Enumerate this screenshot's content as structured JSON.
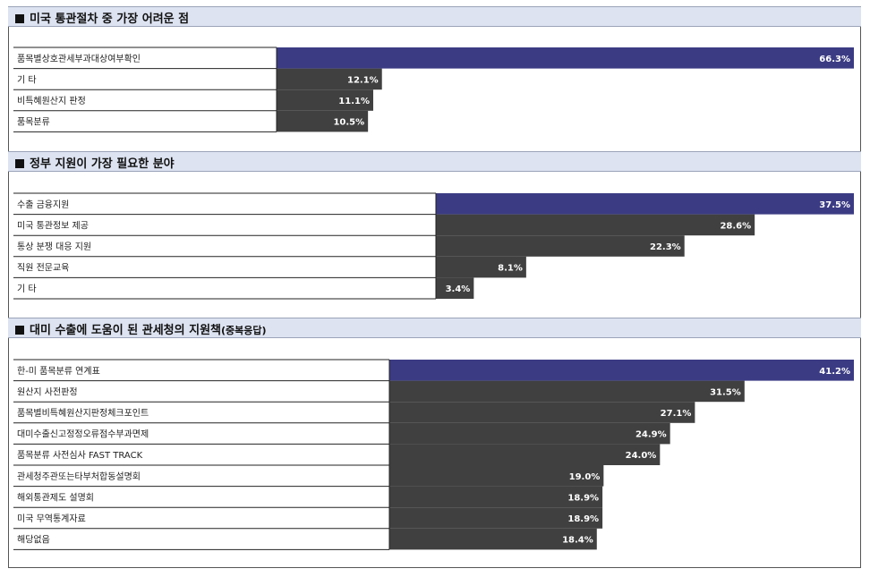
{
  "colors": {
    "highlight": "#3b3b84",
    "bar": "#404040",
    "header_bg": "#dde3f1"
  },
  "chart_data": [
    {
      "type": "bar",
      "orientation": "horizontal",
      "title": "미국 통관절차 중 가장 어려운 점",
      "subtitle": "",
      "categories": [
        "품목별상호관세부과대상여부확인",
        "기 타",
        "비특혜원산지 판정",
        "품목분류"
      ],
      "values": [
        66.3,
        12.1,
        11.1,
        10.5
      ],
      "value_labels": [
        "66.3%",
        "12.1%",
        "11.1%",
        "10.5%"
      ],
      "highlight_index": 0
    },
    {
      "type": "bar",
      "orientation": "horizontal",
      "title": "정부 지원이 가장 필요한 분야",
      "subtitle": "",
      "categories": [
        "수출 금융지원",
        "미국 통관정보 제공",
        "통상 분쟁 대응 지원",
        "직원 전문교육",
        "기 타"
      ],
      "values": [
        37.5,
        28.6,
        22.3,
        8.1,
        3.4
      ],
      "value_labels": [
        "37.5%",
        "28.6%",
        "22.3%",
        "8.1%",
        "3.4%"
      ],
      "highlight_index": 0
    },
    {
      "type": "bar",
      "orientation": "horizontal",
      "title": "대미 수출에 도움이 된 관세청의 지원책",
      "subtitle": "(중복응답)",
      "categories": [
        "한-미 품목분류 연계표",
        "원산지 사전판정",
        "품목별비특혜원산지판정체크포인트",
        "대미수출신고정정오류점수부과면제",
        "품목분류 사전심사 FAST TRACK",
        "관세청주관또는타부처합동설명회",
        "해외통관제도 설명회",
        "미국 무역통계자료",
        "해당없음"
      ],
      "values": [
        41.2,
        31.5,
        27.1,
        24.9,
        24.0,
        19.0,
        18.9,
        18.9,
        18.4
      ],
      "value_labels": [
        "41.2%",
        "31.5%",
        "27.1%",
        "24.9%",
        "24.0%",
        "19.0%",
        "18.9%",
        "18.9%",
        "18.4%"
      ],
      "highlight_index": 0
    }
  ]
}
